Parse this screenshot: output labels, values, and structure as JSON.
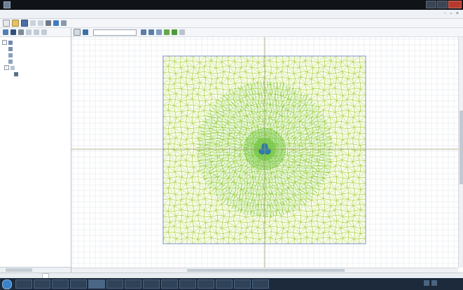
{
  "window": {
    "title": ""
  },
  "menu": {
    "items": [
      "",
      "",
      "",
      "",
      "",
      ""
    ]
  },
  "colors": {
    "mesh_stroke": "#a6cf3a",
    "mesh_dense": "#5fbf2e",
    "mesh_core": "#2a7fb0",
    "grid": "#dfe3e8",
    "axis": "#9a9f6a",
    "domain_border": "#7f93c9"
  },
  "icons": {
    "toolbar": [
      "new-icon",
      "open-icon",
      "save-icon",
      "undo-icon",
      "redo-icon",
      "print-icon",
      "zoom-icon",
      "help-icon"
    ],
    "canvas_toolbar": [
      "pointer-icon",
      "zoom-in-icon",
      "zoom-out-icon",
      "pan-icon",
      "mesh-icon",
      "grid-icon"
    ]
  },
  "tree": {
    "items": [
      "",
      "",
      "",
      "",
      "",
      ""
    ]
  },
  "canvas_toolbar": {
    "combo_value": ""
  },
  "bottom_tabs": {
    "active": ""
  },
  "taskbar": {
    "clock": ""
  }
}
